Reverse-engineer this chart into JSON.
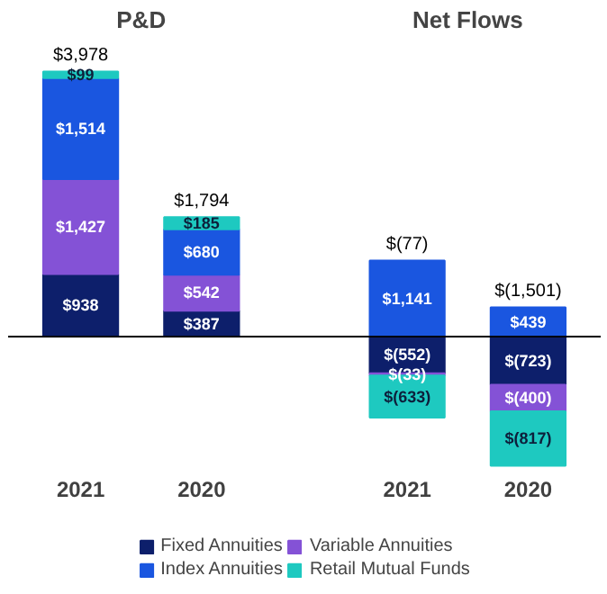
{
  "chart_data": {
    "type": "bar",
    "stacked": true,
    "legend": "bottom",
    "categories": [
      "2021",
      "2020",
      "2021",
      "2020"
    ],
    "annotations": [
      "P&D",
      "Net Flows"
    ],
    "series": [
      {
        "name": "Fixed Annuities",
        "color": "#0d1f6b",
        "values": [
          938,
          387,
          -552,
          -723
        ],
        "value_labels": [
          "$938",
          "$387",
          "$(552)",
          "$(723)"
        ]
      },
      {
        "name": "Variable Annuities",
        "color": "#8452d6",
        "values": [
          1427,
          542,
          -33,
          -400
        ],
        "value_labels": [
          "$1,427",
          "$542",
          "$(33)",
          "$(400)"
        ]
      },
      {
        "name": "Index Annuities",
        "color": "#1a56e0",
        "values": [
          1514,
          680,
          1141,
          439
        ],
        "value_labels": [
          "$1,514",
          "$680",
          "$1,141",
          "$439"
        ]
      },
      {
        "name": "Retail Mutual Funds",
        "color": "#1ec9c0",
        "values": [
          99,
          185,
          -633,
          -817
        ],
        "value_labels": [
          "$99",
          "$185",
          "$(633)",
          "$(817)"
        ]
      }
    ],
    "totals": [
      "$3,978",
      "$1,794",
      "$(77)",
      "$(1,501)"
    ]
  }
}
